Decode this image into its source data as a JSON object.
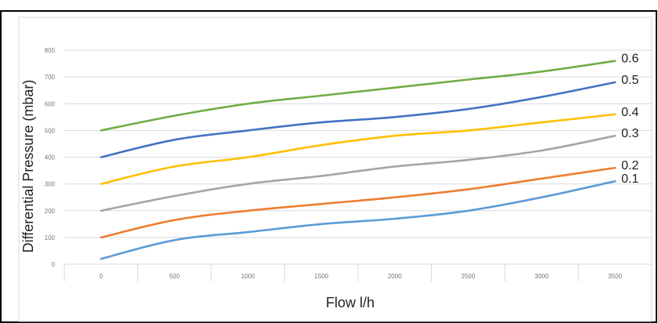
{
  "chart_data": {
    "type": "line",
    "title": "",
    "xlabel": "Flow  l/h",
    "ylabel": "Differential Pressure (mbar)",
    "x": [
      0,
      500,
      1000,
      1500,
      2000,
      2500,
      3000,
      3500
    ],
    "x_tick_labels": [
      "0",
      "500",
      "1000",
      "1500",
      "2000",
      "2500",
      "3000",
      "3500"
    ],
    "y_ticks": [
      0,
      100,
      200,
      300,
      400,
      500,
      600,
      700,
      800
    ],
    "ylim": [
      0,
      800
    ],
    "grid": "horizontal",
    "legend": "labels at line ends",
    "series": [
      {
        "name": "0.6",
        "color": "#70ad47",
        "values": [
          500,
          555,
          600,
          630,
          660,
          690,
          720,
          760
        ]
      },
      {
        "name": "0.5",
        "color": "#4472c4",
        "values": [
          400,
          465,
          500,
          530,
          550,
          580,
          625,
          680
        ]
      },
      {
        "name": "0.4",
        "color": "#ffc000",
        "values": [
          300,
          365,
          400,
          445,
          480,
          500,
          530,
          560
        ]
      },
      {
        "name": "0.3",
        "color": "#a5a5a5",
        "values": [
          200,
          255,
          300,
          330,
          365,
          390,
          425,
          480
        ]
      },
      {
        "name": "0.2",
        "color": "#ed7d31",
        "values": [
          100,
          165,
          200,
          225,
          250,
          280,
          320,
          360
        ]
      },
      {
        "name": "0.1",
        "color": "#5b9bd5",
        "values": [
          20,
          90,
          120,
          150,
          170,
          200,
          250,
          310
        ]
      }
    ]
  }
}
